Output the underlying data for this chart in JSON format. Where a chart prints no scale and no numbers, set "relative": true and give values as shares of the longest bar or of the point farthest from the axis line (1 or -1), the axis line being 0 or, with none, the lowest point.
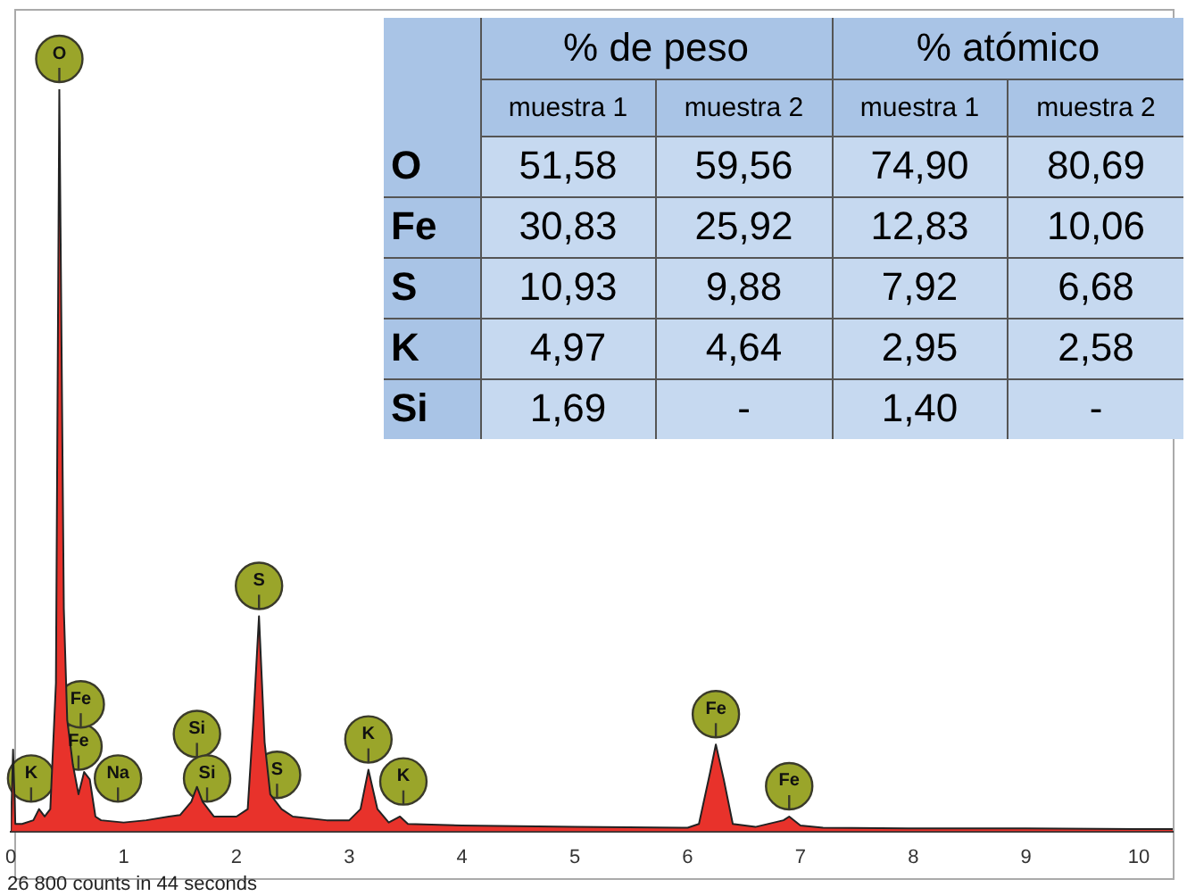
{
  "chart_data": [
    {
      "type": "area",
      "relative": true,
      "tick_labels": "x",
      "grid": false,
      "legend": false,
      "xlim": [
        0,
        10.3
      ],
      "xticks": [
        0,
        1,
        2,
        3,
        4,
        5,
        6,
        7,
        8,
        9,
        10
      ],
      "series": [
        {
          "color": "#e8322b",
          "x": [
            0,
            0.02,
            0.04,
            0.1,
            0.2,
            0.25,
            0.3,
            0.35,
            0.4,
            0.43,
            0.47,
            0.5,
            0.55,
            0.6,
            0.65,
            0.7,
            0.75,
            0.8,
            1.0,
            1.2,
            1.4,
            1.5,
            1.6,
            1.65,
            1.7,
            1.8,
            2.0,
            2.1,
            2.15,
            2.2,
            2.25,
            2.3,
            2.4,
            2.5,
            2.8,
            3.0,
            3.1,
            3.17,
            3.25,
            3.35,
            3.45,
            3.52,
            4,
            5,
            6,
            6.1,
            6.2,
            6.25,
            6.32,
            6.4,
            6.6,
            6.85,
            6.9,
            7.0,
            7.2,
            8,
            9,
            10,
            10.3
          ],
          "values": [
            0,
            0.11,
            0.01,
            0.01,
            0.015,
            0.03,
            0.02,
            0.03,
            0.2,
            1,
            0.3,
            0.15,
            0.09,
            0.05,
            0.08,
            0.07,
            0.02,
            0.015,
            0.012,
            0.015,
            0.02,
            0.022,
            0.04,
            0.06,
            0.04,
            0.02,
            0.02,
            0.03,
            0.15,
            0.29,
            0.12,
            0.05,
            0.03,
            0.02,
            0.015,
            0.015,
            0.03,
            0.083,
            0.03,
            0.012,
            0.02,
            0.01,
            0.008,
            0.006,
            0.005,
            0.01,
            0.08,
            0.117,
            0.07,
            0.01,
            0.006,
            0.015,
            0.02,
            0.008,
            0.005,
            0.004,
            0.004,
            0.003,
            0.003
          ]
        }
      ],
      "annotations": [
        {
          "text": "O",
          "x": 0.43,
          "y": 1
        },
        "K",
        "Fe",
        "Fe",
        "Na",
        "Si",
        "Si",
        {
          "text": "S",
          "x": 2.2,
          "y": 0.29
        },
        "S",
        {
          "text": "K",
          "x": 3.17,
          "y": 0.083
        },
        "K",
        {
          "text": "Fe",
          "x": 6.25,
          "y": 0.117
        },
        {
          "text": "Fe",
          "x": 6.9,
          "y": 0.02
        },
        "26 800 counts in 44 seconds"
      ]
    },
    {
      "type": "heatmap",
      "color": "#c6d9f0",
      "categories": [
        "muestra 1",
        "muestra 2",
        "muestra 1",
        "muestra 2"
      ],
      "y_categories": [
        "O",
        "Fe",
        "S",
        "K",
        "Si"
      ],
      "cells": [
        [
          51.58,
          59.56,
          74.9,
          80.69
        ],
        [
          30.83,
          25.92,
          12.83,
          10.06
        ],
        [
          10.93,
          9.88,
          7.92,
          6.68
        ],
        [
          4.97,
          4.64,
          2.95,
          2.58
        ],
        [
          1.69,
          null,
          1.4,
          null
        ]
      ],
      "cell_labels": [
        [
          "51,58",
          "59,56",
          "74,90",
          "80,69"
        ],
        [
          "30,83",
          "25,92",
          "12,83",
          "10,06"
        ],
        [
          "10,93",
          "9,88",
          "7,92",
          "6,68"
        ],
        [
          "4,97",
          "4,64",
          "2,95",
          "2,58"
        ],
        [
          "1,69",
          "-",
          "1,40",
          "-"
        ]
      ],
      "annotations": [
        "% de peso",
        "% atómico"
      ]
    }
  ]
}
